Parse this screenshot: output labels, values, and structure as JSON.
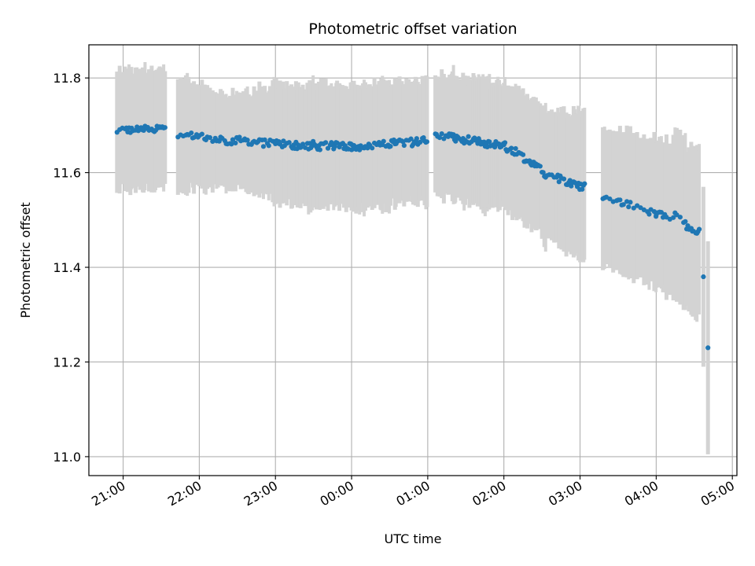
{
  "chart_data": {
    "type": "scatter",
    "title": "Photometric offset variation",
    "xlabel": "UTC time",
    "ylabel": "Photometric offset",
    "x_ticks": [
      "21:00",
      "22:00",
      "23:00",
      "00:00",
      "01:00",
      "02:00",
      "03:00",
      "04:00",
      "05:00"
    ],
    "y_ticks": [
      "11.0",
      "11.2",
      "11.4",
      "11.6",
      "11.8"
    ],
    "x_range_hours": [
      20.55,
      29.06
    ],
    "ylim": [
      10.96,
      11.87
    ],
    "grid": true,
    "colors": {
      "points": "#1f77b4",
      "errorbars": "#d3d3d3",
      "grid": "#b0b0b0"
    },
    "segments": [
      {
        "t0": 20.92,
        "t1": 21.55,
        "y0": 11.688,
        "y1": 11.695,
        "err0": 0.125,
        "err1": 0.125,
        "step": 0.035
      },
      {
        "t0": 21.72,
        "t1": 22.3,
        "y0": 11.682,
        "y1": 11.668,
        "err0": 0.12,
        "err1": 0.1,
        "step": 0.035
      },
      {
        "t0": 22.3,
        "t1": 23.0,
        "y0": 11.668,
        "y1": 11.662,
        "err0": 0.1,
        "err1": 0.12,
        "step": 0.035
      },
      {
        "t0": 23.0,
        "t1": 24.0,
        "y0": 11.66,
        "y1": 11.655,
        "err0": 0.125,
        "err1": 0.13,
        "step": 0.03
      },
      {
        "t0": 24.0,
        "t1": 25.0,
        "y0": 11.655,
        "y1": 11.668,
        "err0": 0.13,
        "err1": 0.13,
        "step": 0.03
      },
      {
        "t0": 25.1,
        "t1": 25.6,
        "y0": 11.68,
        "y1": 11.665,
        "err0": 0.13,
        "err1": 0.13,
        "step": 0.028
      },
      {
        "t0": 25.6,
        "t1": 26.0,
        "y0": 11.665,
        "y1": 11.655,
        "err0": 0.13,
        "err1": 0.13,
        "step": 0.028
      },
      {
        "t0": 26.0,
        "t1": 26.5,
        "y0": 11.655,
        "y1": 11.61,
        "err0": 0.13,
        "err1": 0.14,
        "step": 0.028
      },
      {
        "t0": 26.5,
        "t1": 27.05,
        "y0": 11.6,
        "y1": 11.568,
        "err0": 0.14,
        "err1": 0.16,
        "step": 0.032
      },
      {
        "t0": 27.3,
        "t1": 28.0,
        "y0": 11.548,
        "y1": 11.515,
        "err0": 0.15,
        "err1": 0.16,
        "step": 0.045
      },
      {
        "t0": 28.0,
        "t1": 28.38,
        "y0": 11.515,
        "y1": 11.5,
        "err0": 0.16,
        "err1": 0.18,
        "step": 0.045
      },
      {
        "t0": 28.4,
        "t1": 28.55,
        "y0": 11.48,
        "y1": 11.472,
        "err0": 0.17,
        "err1": 0.18,
        "step": 0.03
      }
    ],
    "outliers": [
      {
        "t": 28.62,
        "y": 11.38,
        "err": 0.19
      },
      {
        "t": 28.68,
        "y": 11.23,
        "err": 0.225
      }
    ]
  }
}
